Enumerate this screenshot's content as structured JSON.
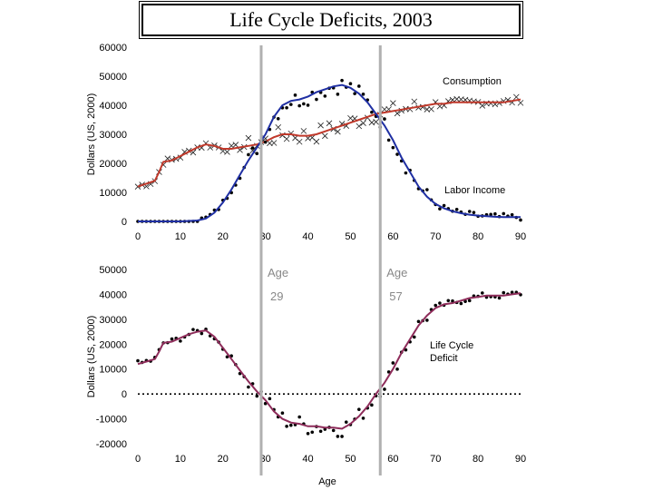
{
  "title": "Life Cycle Deficits, 2003",
  "age_markers": [
    {
      "label": "Age",
      "value": "29",
      "x": 29
    },
    {
      "label": "Age",
      "value": "57",
      "x": 57
    }
  ],
  "colors": {
    "consumption": "#c0392b",
    "labor_income": "#1f2fa3",
    "deficit": "#8e2c5a",
    "marker_line": "#b0b0b0",
    "points": "#000000"
  },
  "chart_data": [
    {
      "type": "line",
      "ylabel": "Dollars (US, 2000)",
      "xlabel": "",
      "xlim": [
        0,
        90
      ],
      "ylim": [
        0,
        60000
      ],
      "xticks": [
        0,
        10,
        20,
        30,
        40,
        50,
        60,
        70,
        80,
        90
      ],
      "yticks": [
        0,
        10000,
        20000,
        30000,
        40000,
        50000,
        60000
      ],
      "annotations": [
        "Consumption",
        "Labor Income"
      ],
      "series": [
        {
          "name": "Consumption",
          "x": [
            0,
            2,
            4,
            5,
            6,
            8,
            10,
            12,
            14,
            16,
            18,
            20,
            22,
            24,
            26,
            28,
            30,
            32,
            34,
            36,
            38,
            40,
            42,
            44,
            46,
            48,
            50,
            52,
            54,
            56,
            58,
            60,
            62,
            64,
            66,
            68,
            70,
            72,
            74,
            76,
            78,
            80,
            82,
            84,
            86,
            88,
            90
          ],
          "y": [
            12000,
            13000,
            14000,
            17000,
            20500,
            21000,
            22500,
            24000,
            25500,
            26500,
            26000,
            25000,
            25000,
            25500,
            26000,
            26500,
            27500,
            29000,
            30000,
            30000,
            29500,
            29500,
            30000,
            31000,
            32000,
            33000,
            34000,
            35000,
            36000,
            37000,
            37500,
            38000,
            38500,
            39000,
            39500,
            40000,
            40500,
            40500,
            41000,
            41000,
            41000,
            41000,
            41000,
            41000,
            41000,
            41500,
            42000
          ]
        },
        {
          "name": "Labor Income",
          "x": [
            0,
            5,
            10,
            14,
            16,
            18,
            20,
            22,
            24,
            26,
            28,
            30,
            32,
            34,
            36,
            38,
            40,
            42,
            44,
            46,
            48,
            50,
            52,
            54,
            56,
            58,
            60,
            62,
            64,
            66,
            68,
            70,
            72,
            74,
            76,
            78,
            80,
            82,
            84,
            86,
            88,
            90
          ],
          "y": [
            0,
            0,
            0,
            300,
            1000,
            3000,
            6500,
            11000,
            16000,
            21000,
            25500,
            30000,
            36000,
            40000,
            41500,
            42000,
            43000,
            44500,
            45500,
            46500,
            47000,
            46000,
            44000,
            41000,
            37000,
            33000,
            28000,
            22000,
            17000,
            12000,
            8500,
            6000,
            4500,
            3500,
            2800,
            2300,
            2000,
            1800,
            1600,
            1500,
            1500,
            1500
          ]
        }
      ]
    },
    {
      "type": "line",
      "ylabel": "Dollars (US, 2000)",
      "xlabel": "Age",
      "xlim": [
        0,
        90
      ],
      "ylim": [
        -20000,
        50000
      ],
      "xticks": [
        0,
        10,
        20,
        30,
        40,
        50,
        60,
        70,
        80,
        90
      ],
      "yticks": [
        -20000,
        -10000,
        0,
        10000,
        20000,
        30000,
        40000,
        50000
      ],
      "annotations": [
        "Life Cycle",
        "Deficit"
      ],
      "series": [
        {
          "name": "Life Cycle Deficit",
          "x": [
            0,
            2,
            4,
            5,
            6,
            8,
            10,
            12,
            14,
            16,
            18,
            20,
            22,
            24,
            26,
            28,
            30,
            32,
            34,
            36,
            38,
            40,
            42,
            44,
            46,
            48,
            50,
            52,
            54,
            56,
            58,
            60,
            62,
            64,
            66,
            68,
            70,
            72,
            74,
            76,
            78,
            80,
            82,
            84,
            86,
            88,
            90
          ],
          "y": [
            12000,
            13000,
            14000,
            17000,
            20500,
            21000,
            22500,
            24000,
            25000,
            25500,
            23000,
            18500,
            14000,
            9500,
            5000,
            1000,
            -2500,
            -7000,
            -10000,
            -11500,
            -12000,
            -13000,
            -13000,
            -13500,
            -13500,
            -14000,
            -12000,
            -9000,
            -5000,
            0,
            4500,
            10000,
            16500,
            22000,
            27500,
            31500,
            34500,
            36000,
            36500,
            37500,
            38500,
            39000,
            39500,
            39500,
            39500,
            40000,
            40500
          ]
        }
      ]
    }
  ]
}
